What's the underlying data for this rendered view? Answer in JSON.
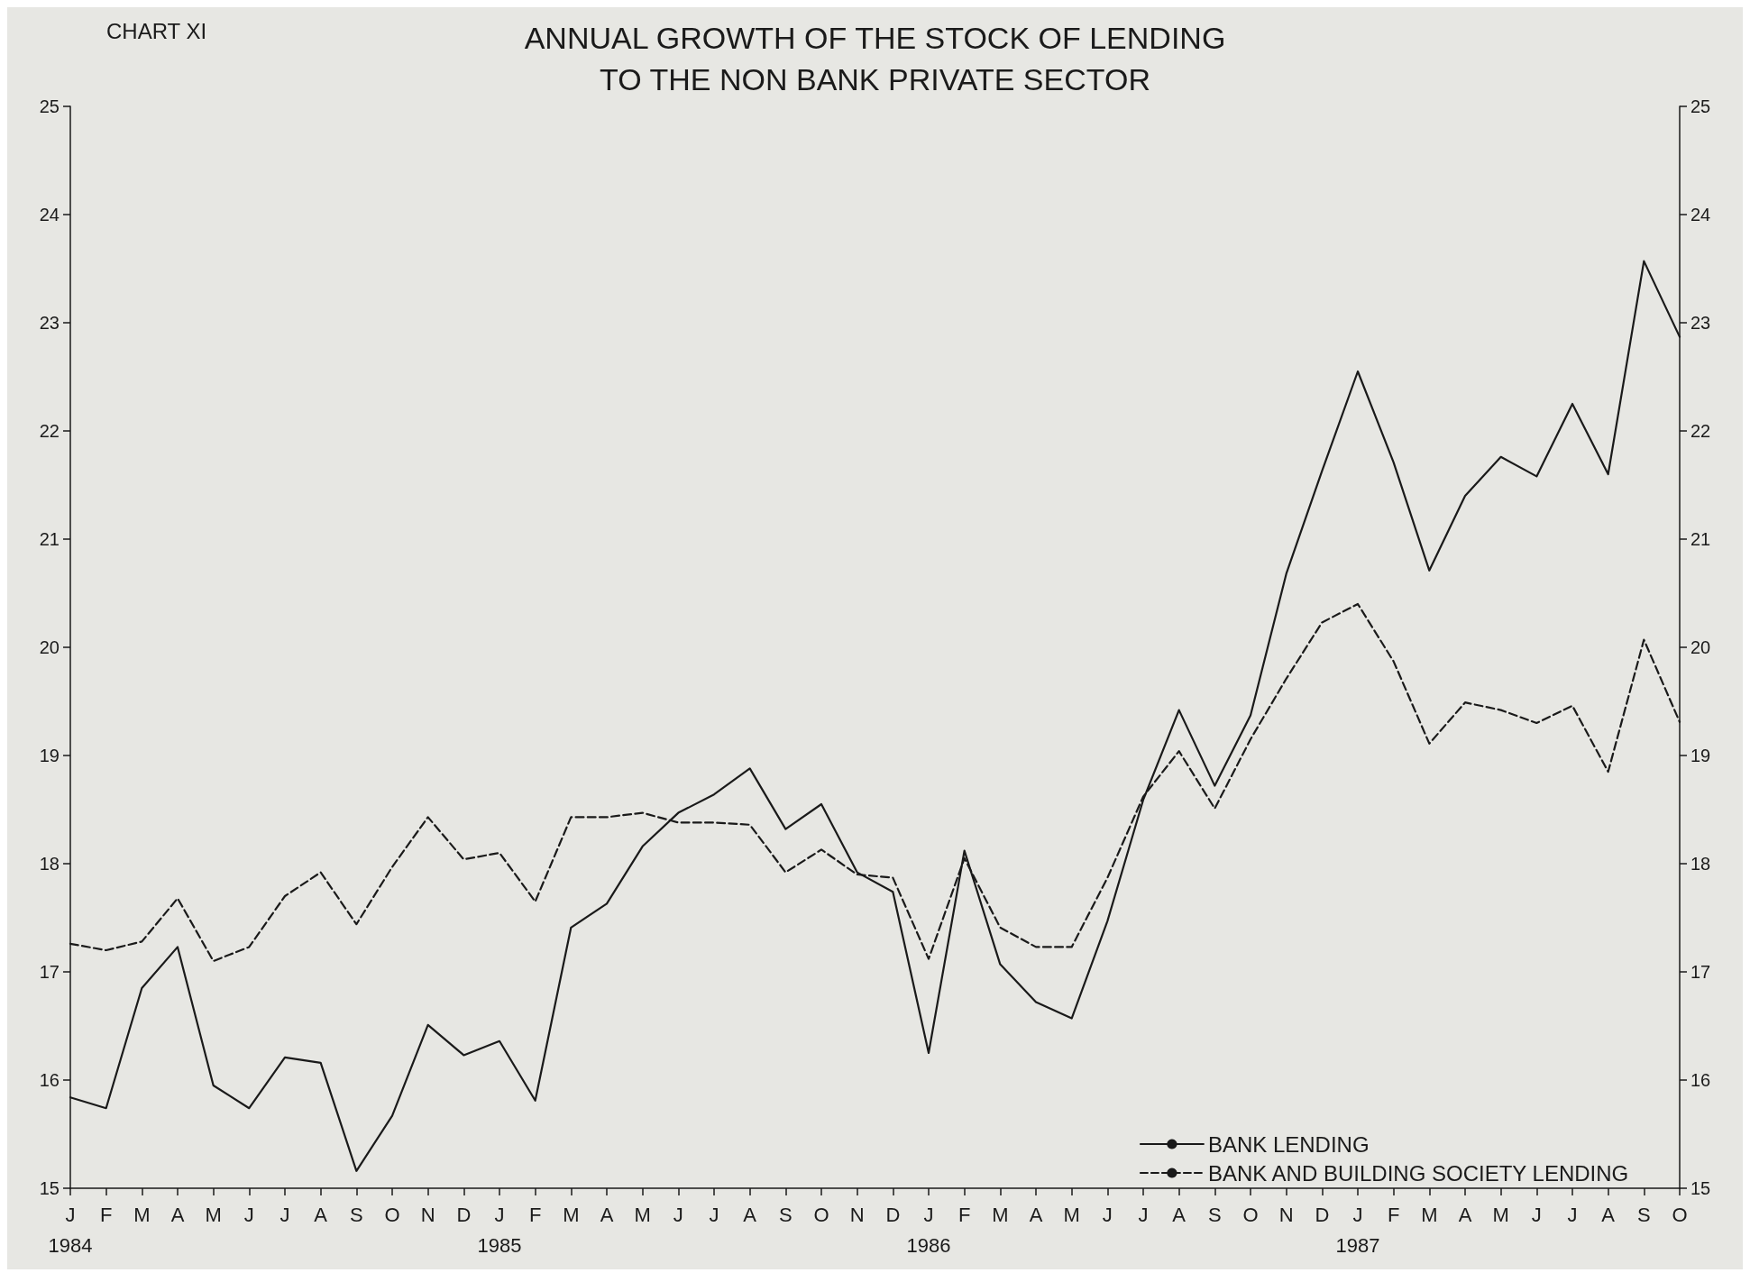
{
  "chart_data": {
    "type": "line",
    "title": "ANNUAL GROWTH OF THE STOCK OF LENDING\nTO THE NON BANK PRIVATE SECTOR",
    "annotations": [
      "CHART XI"
    ],
    "categories": [
      "J\n1984",
      "F",
      "M",
      "A",
      "M",
      "J",
      "J",
      "A",
      "S",
      "O",
      "N",
      "D",
      "J\n1985",
      "F",
      "M",
      "A",
      "M",
      "J",
      "J",
      "A",
      "S",
      "O",
      "N",
      "D",
      "J\n1986",
      "F",
      "M",
      "A",
      "M",
      "J",
      "J",
      "A",
      "S",
      "O",
      "N",
      "D",
      "J\n1987",
      "F",
      "M",
      "A",
      "M",
      "J",
      "J",
      "A",
      "S",
      "O"
    ],
    "series": [
      {
        "name": "BANK LENDING",
        "color": "#1a1a1a",
        "line_style": "solid",
        "values": [
          15.84,
          15.74,
          16.85,
          17.23,
          15.95,
          15.74,
          16.21,
          16.16,
          15.16,
          15.67,
          16.51,
          16.23,
          16.36,
          15.81,
          17.41,
          17.63,
          18.16,
          18.47,
          18.64,
          18.88,
          18.32,
          18.55,
          17.92,
          17.74,
          16.25,
          18.12,
          17.07,
          16.72,
          16.57,
          17.47,
          18.59,
          19.42,
          18.72,
          19.37,
          20.68,
          21.63,
          22.55,
          21.71,
          20.71,
          21.4,
          21.76,
          21.58,
          22.25,
          21.6,
          23.57,
          22.87
        ]
      },
      {
        "name": "BANK AND BUILDING SOCIETY LENDING",
        "color": "#1a1a1a",
        "line_style": "dashed",
        "values": [
          17.26,
          17.2,
          17.28,
          17.68,
          17.1,
          17.23,
          17.7,
          17.92,
          17.44,
          17.97,
          18.43,
          18.04,
          18.1,
          17.65,
          18.43,
          18.43,
          18.47,
          18.38,
          18.38,
          18.36,
          17.92,
          18.13,
          17.9,
          17.87,
          17.12,
          18.05,
          17.41,
          17.23,
          17.23,
          17.87,
          18.62,
          19.04,
          18.51,
          19.15,
          19.71,
          20.23,
          20.4,
          19.87,
          19.11,
          19.49,
          19.42,
          19.3,
          19.46,
          18.85,
          20.07,
          19.31
        ]
      }
    ],
    "ylim": [
      15,
      25
    ],
    "yticks": [
      15,
      16,
      17,
      18,
      19,
      20,
      21,
      22,
      23,
      24,
      25
    ],
    "y2lim": [
      15,
      25
    ],
    "y2ticks": [
      15,
      16,
      17,
      18,
      19,
      20,
      21,
      22,
      23,
      24,
      25
    ],
    "grid": false,
    "legend": "bottom right",
    "marker": "none"
  }
}
